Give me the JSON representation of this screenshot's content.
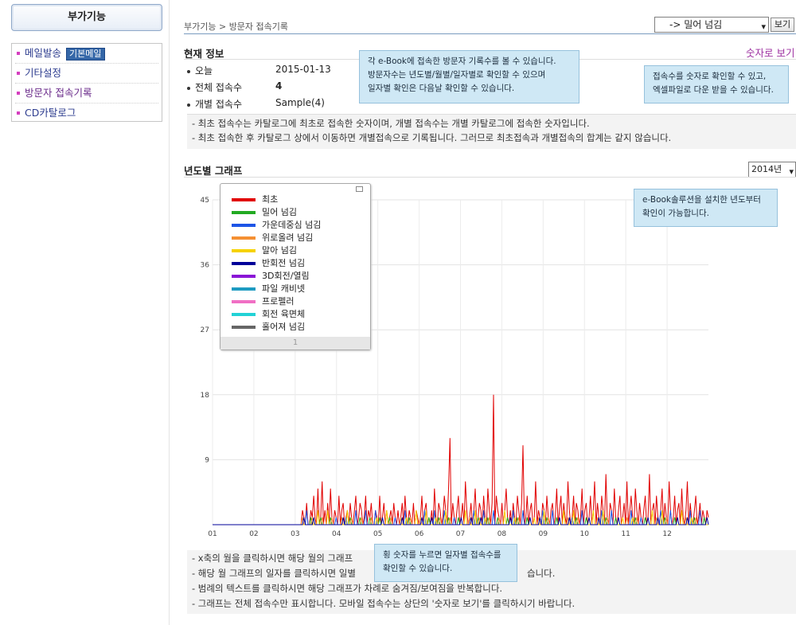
{
  "sidebar": {
    "title": "부가기능",
    "items": [
      {
        "label": "메일발송",
        "badge": "기본메일"
      },
      {
        "label": "기타설정"
      },
      {
        "label": "방문자 접속기록"
      },
      {
        "label": "CD카탈로그"
      }
    ]
  },
  "header": {
    "breadcrumb": "부가기능 > 방문자 접속기록",
    "mode_select": "-> 밀어 넘김",
    "view_button": "보기"
  },
  "current_info": {
    "title": "현재 정보",
    "numbers_link": "숫자로 보기",
    "stats": [
      {
        "label": "오늘",
        "value": "2015-01-13"
      },
      {
        "label": "전체 접속수",
        "value": "4"
      },
      {
        "label": "개별 접속수",
        "value": "Sample(4)"
      }
    ],
    "notes": [
      "- 최초 접속수는 카탈로그에 최초로 접속한 숫자이며, 개별 접속수는 개별 카탈로그에 접속한 숫자입니다.",
      "- 최초 접속한 후 카탈로그 상에서 이동하면 개별접속으로 기록됩니다. 그러므로 최초접속과 개별접속의 합계는 같지 않습니다."
    ]
  },
  "tooltips": {
    "visitor_tip": [
      "각 e-Book에 접속한 방문자 기록수를 볼 수 있습니다.",
      "방문자수는 년도별/월별/일자별로 확인할 수 있으며",
      "일자별 확인은 다음날 확인할 수 있습니다."
    ],
    "numbers_tip": [
      "접속수를 숫자로 확인할 수 있고,",
      "엑셀파일로 다운 받을 수 있습니다."
    ],
    "year_tip": [
      "e-Book솔루션을 설치한 년도부터",
      "확인이 가능합니다."
    ],
    "axis_tip": [
      "횡 숫자를 누르면 일자별 접속수를",
      "확인할 수 있습니다."
    ]
  },
  "graph_section": {
    "title": "년도별 그래프",
    "year_select": "2014년",
    "legend_page": "1"
  },
  "chart_data": {
    "type": "line",
    "categories": [
      "01",
      "02",
      "03",
      "04",
      "05",
      "06",
      "07",
      "08",
      "09",
      "10",
      "11",
      "12"
    ],
    "y_ticks": [
      9,
      18,
      27,
      36,
      45
    ],
    "ylim": [
      0,
      45
    ],
    "grid": true,
    "legend_position": "top-left",
    "series": [
      {
        "name": "최초",
        "color": "#e10000"
      },
      {
        "name": "밀어 넘김",
        "color": "#22aa22"
      },
      {
        "name": "가운데중심 넘김",
        "color": "#1d55e6"
      },
      {
        "name": "위로올려 넘김",
        "color": "#f59033"
      },
      {
        "name": "말아 넘김",
        "color": "#f6d200"
      },
      {
        "name": "반회전 넘김",
        "color": "#000099"
      },
      {
        "name": "3D회전/열림",
        "color": "#8a16d6"
      },
      {
        "name": "파일 캐비넷",
        "color": "#1d9bc1"
      },
      {
        "name": "프로펠러",
        "color": "#f06fc4"
      },
      {
        "name": "회전 육면체",
        "color": "#22d2d6"
      },
      {
        "name": "홀어져 넘김",
        "color": "#666666"
      }
    ],
    "primary_series_daily": [
      0,
      0,
      0,
      0,
      0,
      0,
      0,
      0,
      0,
      0,
      0,
      0,
      0,
      0,
      0,
      0,
      0,
      0,
      0,
      0,
      0,
      0,
      0,
      0,
      0,
      0,
      0,
      0,
      0,
      0,
      0,
      0,
      0,
      0,
      0,
      0,
      0,
      0,
      0,
      0,
      0,
      0,
      0,
      0,
      0,
      0,
      0,
      0,
      0,
      0,
      0,
      0,
      0,
      0,
      0,
      0,
      0,
      0,
      0,
      0,
      0,
      0,
      0,
      0,
      2,
      1,
      0,
      3,
      0,
      0,
      2,
      1,
      4,
      1,
      0,
      5,
      0,
      1,
      6,
      0,
      2,
      0,
      3,
      0,
      5,
      1,
      0,
      2,
      1,
      0,
      4,
      0,
      2,
      3,
      0,
      1,
      2,
      0,
      3,
      1,
      0,
      2,
      4,
      0,
      1,
      3,
      2,
      0,
      1,
      4,
      0,
      2,
      1,
      3,
      0,
      0,
      2,
      1,
      0,
      4,
      0,
      1,
      3,
      0,
      2,
      0,
      1,
      2,
      0,
      3,
      1,
      0,
      2,
      0,
      1,
      3,
      0,
      4,
      1,
      0,
      2,
      1,
      0,
      3,
      0,
      2,
      1,
      0,
      1,
      4,
      0,
      2,
      3,
      0,
      1,
      0,
      2,
      0,
      5,
      1,
      0,
      3,
      2,
      0,
      1,
      4,
      2,
      0,
      5,
      12,
      0,
      3,
      1,
      0,
      2,
      4,
      0,
      1,
      3,
      0,
      6,
      2,
      0,
      1,
      3,
      0,
      2,
      5,
      0,
      1,
      3,
      2,
      0,
      4,
      1,
      0,
      5,
      2,
      0,
      3,
      18,
      0,
      4,
      2,
      1,
      0,
      3,
      0,
      2,
      5,
      1,
      0,
      2,
      0,
      3,
      1,
      0,
      4,
      2,
      0,
      3,
      11,
      0,
      1,
      4,
      0,
      2,
      3,
      0,
      1,
      6,
      0,
      2,
      1,
      0,
      3,
      2,
      0,
      4,
      1,
      0,
      2,
      3,
      0,
      1,
      5,
      0,
      2,
      4,
      0,
      3,
      1,
      0,
      6,
      2,
      0,
      1,
      4,
      0,
      3,
      2,
      0,
      1,
      5,
      0,
      2,
      3,
      0,
      1,
      4,
      0,
      2,
      6,
      0,
      3,
      1,
      0,
      4,
      2,
      0,
      7,
      1,
      0,
      3,
      2,
      0,
      5,
      1,
      0,
      2,
      4,
      0,
      1,
      3,
      0,
      6,
      0,
      2,
      4,
      1,
      0,
      5,
      2,
      0,
      3,
      1,
      0,
      2,
      4,
      0,
      1,
      7,
      0,
      2,
      3,
      0,
      4,
      1,
      0,
      2,
      5,
      0,
      3,
      1,
      0,
      6,
      2,
      0,
      1,
      4,
      0,
      2,
      3,
      0,
      5,
      1,
      0,
      2,
      6,
      0,
      3,
      1,
      0,
      2,
      4,
      0,
      1,
      3,
      0,
      2,
      1,
      0,
      2,
      1
    ]
  },
  "graph_notes": [
    "- x축의 월을 클릭하시면 해당 월의 그래프",
    "- 해당 월 그래프의 일자를 클릭하시면 일별",
    "- 범례의 텍스트를 클릭하시면 해당 그래프가 차례로 숨겨짐/보여짐을 반복합니다.",
    "- 그래프는 전체 접속수만 표시합니다. 모바일 접속수는 상단의 '숫자로 보기'를 클릭하시기 바랍니다."
  ],
  "graph_notes_tail": "습니다."
}
